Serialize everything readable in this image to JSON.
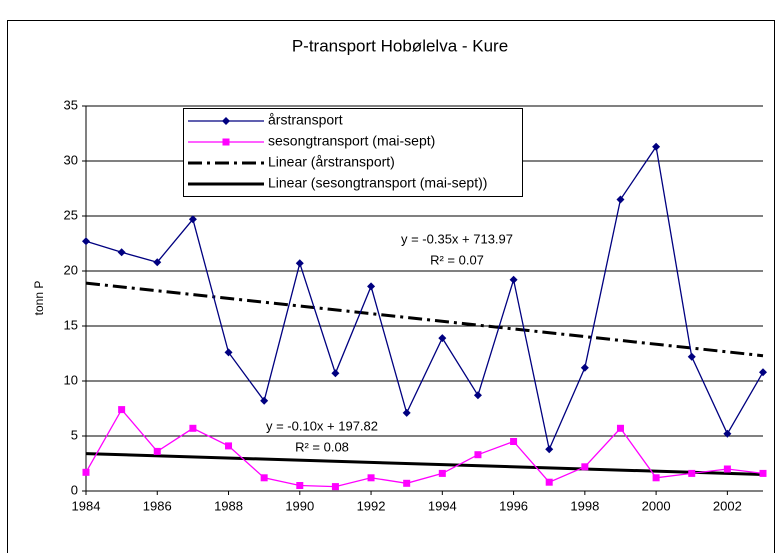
{
  "chart_data": {
    "type": "line",
    "title": "P-transport Hobølelva - Kure",
    "ylabel": "tonn P",
    "x": [
      1984,
      1985,
      1986,
      1987,
      1988,
      1989,
      1990,
      1991,
      1992,
      1993,
      1994,
      1995,
      1996,
      1997,
      1998,
      1999,
      2000,
      2001,
      2002,
      2003
    ],
    "xlim": [
      1984,
      2003
    ],
    "xticks": [
      1984,
      1986,
      1988,
      1990,
      1992,
      1994,
      1996,
      1998,
      2000,
      2002
    ],
    "ylim": [
      0,
      35
    ],
    "yticks": [
      0,
      5,
      10,
      15,
      20,
      25,
      30,
      35
    ],
    "grid": true,
    "series": [
      {
        "name": "årstransport",
        "color": "#000080",
        "marker": "diamond",
        "values": [
          22.7,
          21.7,
          20.8,
          24.7,
          12.6,
          8.2,
          20.7,
          10.7,
          18.6,
          7.1,
          13.9,
          8.7,
          19.2,
          3.8,
          11.2,
          26.5,
          31.3,
          12.2,
          5.2,
          10.8
        ]
      },
      {
        "name": "sesongtransport (mai-sept)",
        "color": "#ff00ff",
        "marker": "square",
        "values": [
          1.7,
          7.4,
          3.6,
          5.7,
          4.1,
          1.2,
          0.5,
          0.4,
          1.2,
          0.7,
          1.6,
          3.3,
          4.5,
          0.8,
          2.2,
          5.7,
          1.2,
          1.6,
          2.0,
          1.6
        ]
      }
    ],
    "trendlines": [
      {
        "name": "Linear (årstransport)",
        "color": "#000000",
        "dash": "dash-dot",
        "x": [
          1984,
          2003
        ],
        "values": [
          18.9,
          12.3
        ],
        "equation": "y = -0.35x + 713.97",
        "r2": "R² = 0.07"
      },
      {
        "name": "Linear (sesongtransport (mai-sept))",
        "color": "#000000",
        "dash": "solid",
        "x": [
          1984,
          2003
        ],
        "values": [
          3.4,
          1.5
        ],
        "equation": "y = -0.10x + 197.82",
        "r2": "R² = 0.08"
      }
    ]
  }
}
